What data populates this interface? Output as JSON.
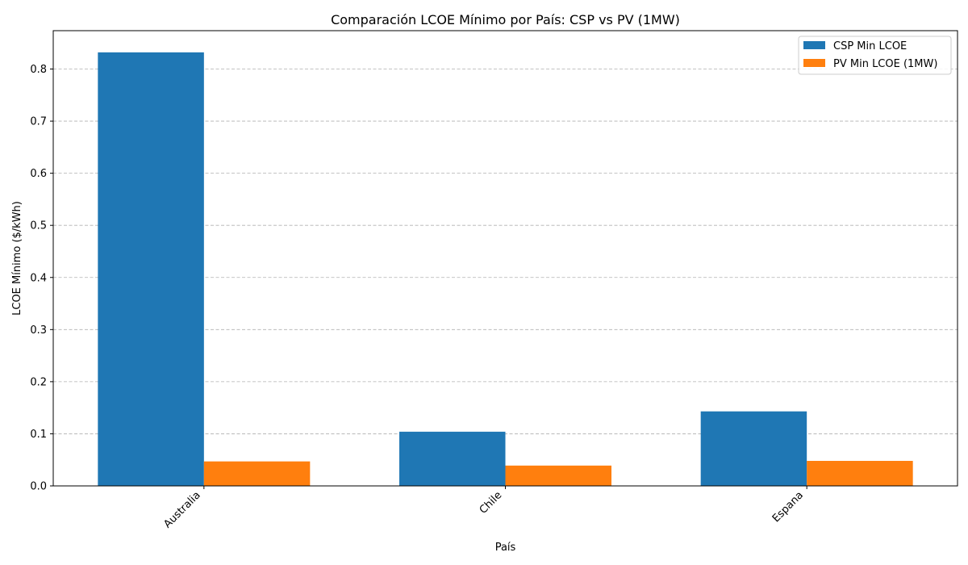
{
  "chart_data": {
    "type": "bar",
    "title": "Comparación LCOE Mínimo por País: CSP vs PV (1MW)",
    "xlabel": "País",
    "ylabel": "LCOE Mínimo ($/kWh)",
    "categories": [
      "Australia",
      "Chile",
      "Espana"
    ],
    "series": [
      {
        "name": "CSP Min LCOE",
        "color": "#1f77b4",
        "values": [
          0.832,
          0.104,
          0.143
        ]
      },
      {
        "name": "PV Min LCOE (1MW)",
        "color": "#ff7f0e",
        "values": [
          0.047,
          0.039,
          0.048
        ]
      }
    ],
    "ylim": [
      0,
      0.8736
    ],
    "yticks": [
      0.0,
      0.1,
      0.2,
      0.3,
      0.4,
      0.5,
      0.6,
      0.7,
      0.8
    ],
    "ytick_labels": [
      "0.0",
      "0.1",
      "0.2",
      "0.3",
      "0.4",
      "0.5",
      "0.6",
      "0.7",
      "0.8"
    ],
    "grid": "y-dashed",
    "legend": "top-right"
  }
}
